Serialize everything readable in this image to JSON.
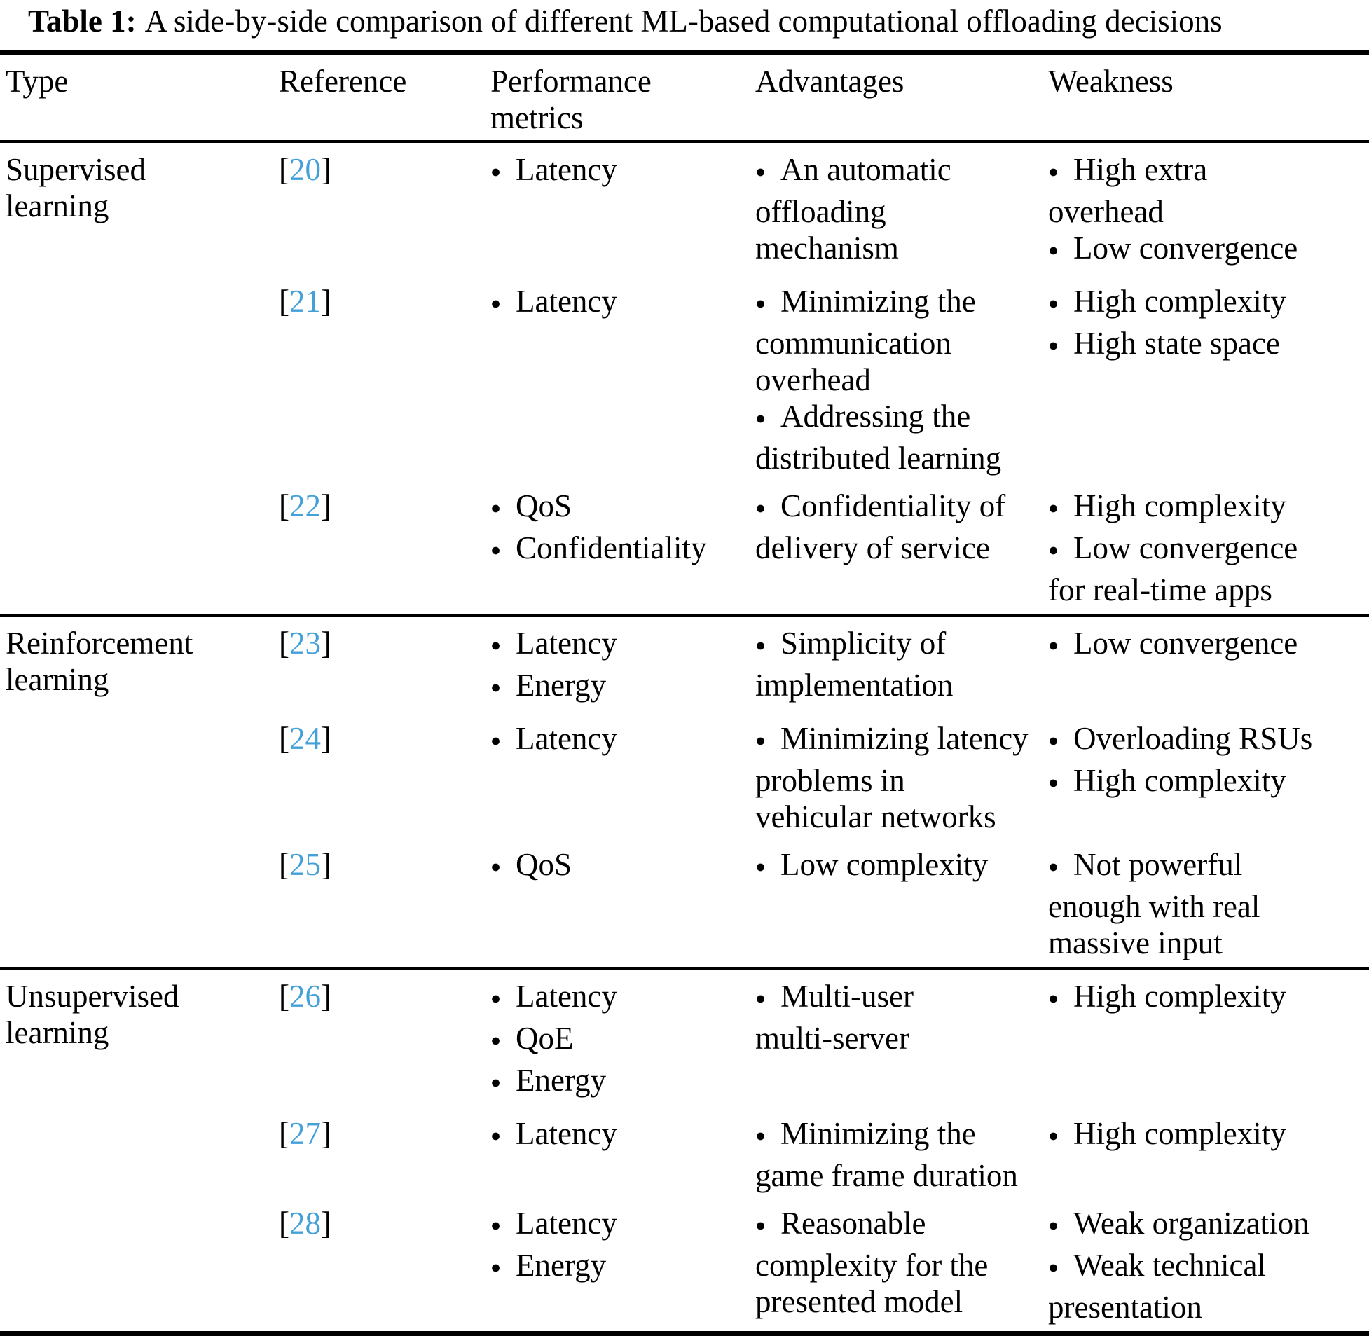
{
  "caption": {
    "label": "Table 1:",
    "text": "A side-by-side comparison of different ML-based computational offloading decisions"
  },
  "columns": [
    "Type",
    "Reference",
    "Performance\nmetrics",
    "Advantages",
    "Weakness"
  ],
  "bullet_glyph": "●",
  "bracket_open": "[",
  "bracket_close": "]",
  "colors": {
    "reference_link_blue": "#44a0d9",
    "text": "#000000"
  },
  "groups": [
    {
      "type": "Supervised\nlearning",
      "rows": [
        {
          "ref": "20",
          "metrics": [
            "Latency"
          ],
          "advantages": [
            "An automatic\noffloading\nmechanism"
          ],
          "weakness": [
            "High extra\noverhead",
            "Low convergence"
          ]
        },
        {
          "ref": "21",
          "metrics": [
            "Latency"
          ],
          "advantages": [
            "Minimizing the\ncommunication\noverhead",
            "Addressing the\ndistributed learning"
          ],
          "weakness": [
            "High complexity",
            "High state space"
          ]
        },
        {
          "ref": "22",
          "metrics": [
            "QoS",
            "Confidentiality"
          ],
          "advantages": [
            "Confidentiality of\ndelivery of service"
          ],
          "weakness": [
            "High complexity",
            "Low convergence\nfor real-time apps"
          ]
        }
      ]
    },
    {
      "type": "Reinforcement\nlearning",
      "rows": [
        {
          "ref": "23",
          "metrics": [
            "Latency",
            "Energy"
          ],
          "advantages": [
            "Simplicity of\nimplementation"
          ],
          "weakness": [
            "Low convergence"
          ]
        },
        {
          "ref": "24",
          "metrics": [
            "Latency"
          ],
          "advantages": [
            "Minimizing latency\nproblems in\nvehicular networks"
          ],
          "weakness": [
            "Overloading RSUs",
            "High complexity"
          ]
        },
        {
          "ref": "25",
          "metrics": [
            "QoS"
          ],
          "advantages": [
            "Low complexity"
          ],
          "weakness": [
            "Not powerful\nenough with real\nmassive input"
          ]
        }
      ]
    },
    {
      "type": "Unsupervised\nlearning",
      "rows": [
        {
          "ref": "26",
          "metrics": [
            "Latency",
            "QoE",
            "Energy"
          ],
          "advantages": [
            "Multi-user\nmulti-server"
          ],
          "weakness": [
            "High complexity"
          ]
        },
        {
          "ref": "27",
          "metrics": [
            "Latency"
          ],
          "advantages": [
            "Minimizing the\ngame frame duration"
          ],
          "weakness": [
            "High complexity"
          ]
        },
        {
          "ref": "28",
          "metrics": [
            "Latency",
            "Energy"
          ],
          "advantages": [
            "Reasonable\ncomplexity for the\npresented model"
          ],
          "weakness": [
            "Weak organization",
            "Weak technical\npresentation"
          ]
        }
      ]
    }
  ]
}
